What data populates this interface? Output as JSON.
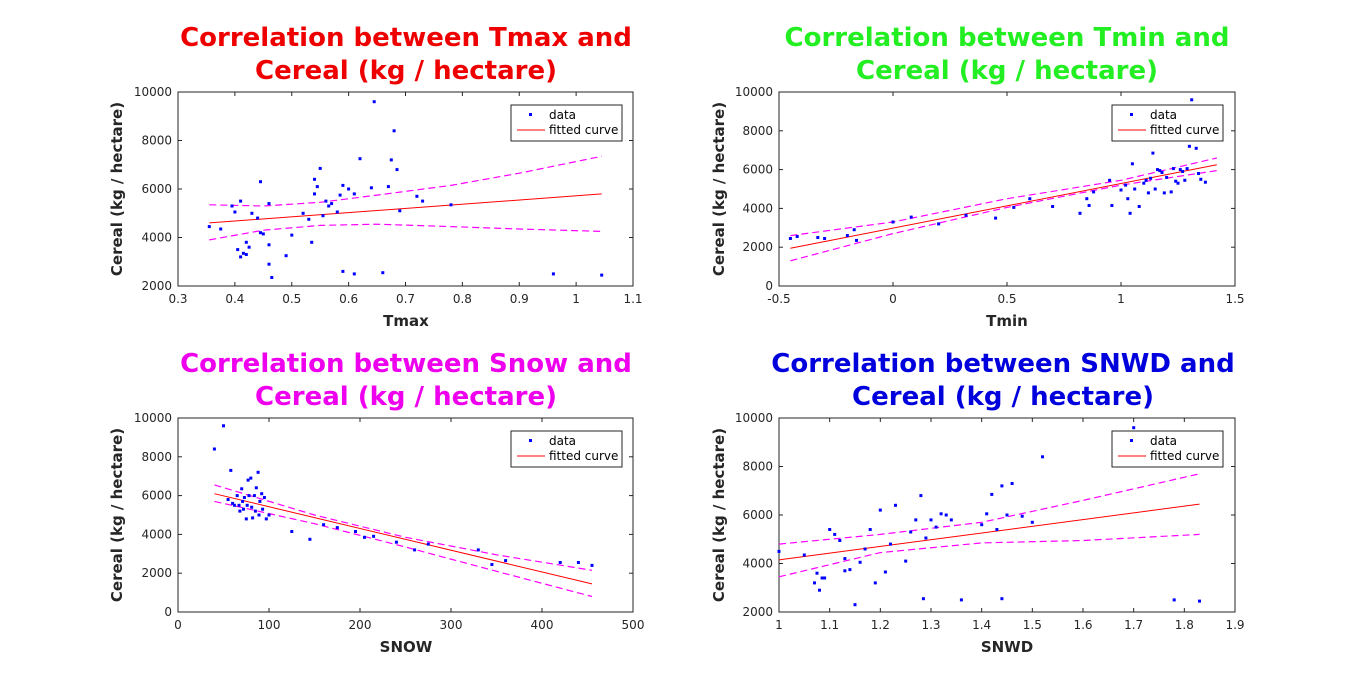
{
  "colors": {
    "points": "#0000ff",
    "fit": "#ff0000",
    "bounds": "#ff00ff",
    "axis": "#262626",
    "legend_border": "#262626"
  },
  "chart_data": [
    {
      "type": "scatter",
      "id": "tmax",
      "title_line1": "Correlation between Tmax and",
      "title_line2": "Cereal  (kg / hectare)",
      "title_color": "#ee0000",
      "xlabel": "Tmax",
      "ylabel": "Cereal  (kg / hectare)",
      "xlim": [
        0.3,
        1.1
      ],
      "ylim": [
        2000,
        10000
      ],
      "xticks": [
        0.3,
        0.4,
        0.5,
        0.6,
        0.7,
        0.8,
        0.9,
        1,
        1.1
      ],
      "yticks": [
        2000,
        4000,
        6000,
        8000,
        10000
      ],
      "xtick_labels": [
        "0.3",
        "0.4",
        "0.5",
        "0.6",
        "0.7",
        "0.8",
        "0.9",
        "1",
        "1.1"
      ],
      "ytick_labels": [
        "2000",
        "4000",
        "6000",
        "8000",
        "10000"
      ],
      "legend": [
        "data",
        "fitted curve"
      ],
      "points": [
        [
          0.355,
          4450
        ],
        [
          0.375,
          4350
        ],
        [
          0.395,
          5300
        ],
        [
          0.4,
          5050
        ],
        [
          0.405,
          3500
        ],
        [
          0.41,
          3200
        ],
        [
          0.41,
          5500
        ],
        [
          0.415,
          3350
        ],
        [
          0.42,
          3800
        ],
        [
          0.42,
          3300
        ],
        [
          0.425,
          3600
        ],
        [
          0.43,
          5000
        ],
        [
          0.44,
          4800
        ],
        [
          0.445,
          6300
        ],
        [
          0.445,
          4200
        ],
        [
          0.45,
          4150
        ],
        [
          0.46,
          3700
        ],
        [
          0.46,
          5400
        ],
        [
          0.46,
          2900
        ],
        [
          0.465,
          2350
        ],
        [
          0.49,
          3250
        ],
        [
          0.5,
          4100
        ],
        [
          0.52,
          5000
        ],
        [
          0.53,
          4750
        ],
        [
          0.535,
          3800
        ],
        [
          0.54,
          5800
        ],
        [
          0.54,
          6400
        ],
        [
          0.545,
          6100
        ],
        [
          0.55,
          6850
        ],
        [
          0.555,
          4900
        ],
        [
          0.56,
          5500
        ],
        [
          0.565,
          5300
        ],
        [
          0.57,
          5400
        ],
        [
          0.58,
          5050
        ],
        [
          0.585,
          5750
        ],
        [
          0.59,
          6150
        ],
        [
          0.59,
          2600
        ],
        [
          0.6,
          6000
        ],
        [
          0.61,
          5800
        ],
        [
          0.61,
          2500
        ],
        [
          0.62,
          7250
        ],
        [
          0.64,
          6050
        ],
        [
          0.645,
          9600
        ],
        [
          0.66,
          2550
        ],
        [
          0.67,
          6100
        ],
        [
          0.675,
          7200
        ],
        [
          0.68,
          8400
        ],
        [
          0.685,
          6800
        ],
        [
          0.69,
          5100
        ],
        [
          0.72,
          5700
        ],
        [
          0.73,
          5500
        ],
        [
          0.78,
          5350
        ],
        [
          0.96,
          2500
        ],
        [
          1.045,
          2450
        ]
      ],
      "fit": [
        [
          0.355,
          4600
        ],
        [
          1.045,
          5800
        ]
      ],
      "upper": [
        [
          0.355,
          5350
        ],
        [
          0.45,
          5300
        ],
        [
          0.55,
          5450
        ],
        [
          0.65,
          5750
        ],
        [
          0.78,
          6150
        ],
        [
          0.9,
          6650
        ],
        [
          1.045,
          7350
        ]
      ],
      "lower": [
        [
          0.355,
          3900
        ],
        [
          0.45,
          4300
        ],
        [
          0.55,
          4500
        ],
        [
          0.65,
          4550
        ],
        [
          0.78,
          4450
        ],
        [
          0.9,
          4350
        ],
        [
          1.045,
          4250
        ]
      ]
    },
    {
      "type": "scatter",
      "id": "tmin",
      "title_line1": "Correlation between Tmin and",
      "title_line2": "Cereal  (kg / hectare)",
      "title_color": "#22ee22",
      "xlabel": "Tmin",
      "ylabel": "Cereal  (kg / hectare)",
      "xlim": [
        -0.5,
        1.5
      ],
      "ylim": [
        0,
        10000
      ],
      "xticks": [
        -0.5,
        0,
        0.5,
        1,
        1.5
      ],
      "yticks": [
        0,
        2000,
        4000,
        6000,
        8000,
        10000
      ],
      "xtick_labels": [
        "-0.5",
        "0",
        "0.5",
        "1",
        "1.5"
      ],
      "ytick_labels": [
        "0",
        "2000",
        "4000",
        "6000",
        "8000",
        "10000"
      ],
      "legend": [
        "data",
        "fitted curve"
      ],
      "points": [
        [
          -0.45,
          2450
        ],
        [
          -0.42,
          2550
        ],
        [
          -0.33,
          2500
        ],
        [
          -0.3,
          2450
        ],
        [
          -0.2,
          2600
        ],
        [
          -0.17,
          2900
        ],
        [
          -0.16,
          2350
        ],
        [
          0,
          3300
        ],
        [
          0.08,
          3550
        ],
        [
          0.2,
          3200
        ],
        [
          0.32,
          3650
        ],
        [
          0.45,
          3500
        ],
        [
          0.53,
          4050
        ],
        [
          0.6,
          4500
        ],
        [
          0.7,
          4100
        ],
        [
          0.82,
          3750
        ],
        [
          0.85,
          4500
        ],
        [
          0.86,
          4150
        ],
        [
          0.88,
          4850
        ],
        [
          0.95,
          5450
        ],
        [
          0.96,
          4150
        ],
        [
          1,
          4950
        ],
        [
          1.02,
          5200
        ],
        [
          1.03,
          4500
        ],
        [
          1.04,
          3750
        ],
        [
          1.05,
          6300
        ],
        [
          1.06,
          5000
        ],
        [
          1.08,
          4100
        ],
        [
          1.1,
          5300
        ],
        [
          1.11,
          5450
        ],
        [
          1.12,
          4800
        ],
        [
          1.13,
          5550
        ],
        [
          1.14,
          6850
        ],
        [
          1.15,
          5000
        ],
        [
          1.16,
          6000
        ],
        [
          1.17,
          5950
        ],
        [
          1.18,
          5850
        ],
        [
          1.19,
          4800
        ],
        [
          1.2,
          5600
        ],
        [
          1.22,
          4850
        ],
        [
          1.23,
          6050
        ],
        [
          1.24,
          5400
        ],
        [
          1.25,
          5300
        ],
        [
          1.26,
          6000
        ],
        [
          1.27,
          5900
        ],
        [
          1.28,
          5450
        ],
        [
          1.29,
          6050
        ],
        [
          1.3,
          7200
        ],
        [
          1.31,
          9600
        ],
        [
          1.33,
          7100
        ],
        [
          1.34,
          5800
        ],
        [
          1.35,
          5500
        ],
        [
          1.37,
          5350
        ]
      ],
      "fit": [
        [
          -0.45,
          1950
        ],
        [
          1.42,
          6250
        ]
      ],
      "upper": [
        [
          -0.45,
          2600
        ],
        [
          0,
          3300
        ],
        [
          0.5,
          4500
        ],
        [
          1,
          5450
        ],
        [
          1.42,
          6600
        ]
      ],
      "lower": [
        [
          -0.45,
          1300
        ],
        [
          0,
          2700
        ],
        [
          0.5,
          4050
        ],
        [
          1,
          5200
        ],
        [
          1.42,
          5950
        ]
      ]
    },
    {
      "type": "scatter",
      "id": "snow",
      "title_line1": "Correlation between Snow and",
      "title_line2": "Cereal  (kg / hectare)",
      "title_color": "#ee00ee",
      "xlabel": "SNOW",
      "ylabel": "Cereal  (kg / hectare)",
      "xlim": [
        0,
        500
      ],
      "ylim": [
        0,
        10000
      ],
      "xticks": [
        0,
        100,
        200,
        300,
        400,
        500
      ],
      "yticks": [
        0,
        2000,
        4000,
        6000,
        8000,
        10000
      ],
      "xtick_labels": [
        "0",
        "100",
        "200",
        "300",
        "400",
        "500"
      ],
      "ytick_labels": [
        "0",
        "2000",
        "4000",
        "6000",
        "8000",
        "10000"
      ],
      "legend": [
        "data",
        "fitted curve"
      ],
      "points": [
        [
          40,
          8400
        ],
        [
          50,
          9600
        ],
        [
          55,
          5800
        ],
        [
          58,
          7300
        ],
        [
          60,
          5600
        ],
        [
          62,
          5500
        ],
        [
          65,
          6000
        ],
        [
          67,
          5500
        ],
        [
          68,
          5200
        ],
        [
          70,
          6350
        ],
        [
          71,
          5700
        ],
        [
          72,
          5300
        ],
        [
          73,
          5900
        ],
        [
          75,
          4800
        ],
        [
          76,
          5500
        ],
        [
          77,
          6800
        ],
        [
          78,
          6000
        ],
        [
          80,
          6900
        ],
        [
          81,
          5400
        ],
        [
          82,
          4850
        ],
        [
          84,
          6000
        ],
        [
          85,
          5200
        ],
        [
          86,
          6400
        ],
        [
          88,
          7200
        ],
        [
          89,
          5000
        ],
        [
          90,
          5700
        ],
        [
          92,
          6100
        ],
        [
          93,
          5300
        ],
        [
          95,
          5900
        ],
        [
          97,
          4800
        ],
        [
          100,
          5000
        ],
        [
          125,
          4150
        ],
        [
          145,
          3750
        ],
        [
          160,
          4500
        ],
        [
          175,
          4350
        ],
        [
          195,
          4150
        ],
        [
          205,
          3850
        ],
        [
          215,
          3900
        ],
        [
          240,
          3600
        ],
        [
          260,
          3200
        ],
        [
          275,
          3500
        ],
        [
          330,
          3200
        ],
        [
          345,
          2450
        ],
        [
          360,
          2650
        ],
        [
          420,
          2550
        ],
        [
          440,
          2550
        ],
        [
          455,
          2400
        ]
      ],
      "fit": [
        [
          40,
          6100
        ],
        [
          455,
          1450
        ]
      ],
      "upper": [
        [
          40,
          6550
        ],
        [
          150,
          5000
        ],
        [
          250,
          3850
        ],
        [
          350,
          2950
        ],
        [
          455,
          2150
        ]
      ],
      "lower": [
        [
          40,
          5700
        ],
        [
          150,
          4550
        ],
        [
          250,
          3350
        ],
        [
          350,
          2100
        ],
        [
          455,
          800
        ]
      ]
    },
    {
      "type": "scatter",
      "id": "snwd",
      "title_line1": "Correlation between SNWD and",
      "title_line2": "Cereal  (kg / hectare)",
      "title_color": "#0000dd",
      "xlabel": "SNWD",
      "ylabel": "Cereal  (kg / hectare)",
      "xlim": [
        1,
        1.9
      ],
      "ylim": [
        2000,
        10000
      ],
      "xticks": [
        1,
        1.1,
        1.2,
        1.3,
        1.4,
        1.5,
        1.6,
        1.7,
        1.8,
        1.9
      ],
      "yticks": [
        2000,
        4000,
        6000,
        8000,
        10000
      ],
      "xtick_labels": [
        "1",
        "1.1",
        "1.2",
        "1.3",
        "1.4",
        "1.5",
        "1.6",
        "1.7",
        "1.8",
        "1.9"
      ],
      "ytick_labels": [
        "2000",
        "4000",
        "6000",
        "8000",
        "10000"
      ],
      "legend": [
        "data",
        "fitted curve"
      ],
      "points": [
        [
          1,
          4500
        ],
        [
          1.05,
          4350
        ],
        [
          1.07,
          3200
        ],
        [
          1.075,
          3600
        ],
        [
          1.08,
          2900
        ],
        [
          1.085,
          3400
        ],
        [
          1.09,
          3400
        ],
        [
          1.1,
          5400
        ],
        [
          1.11,
          5200
        ],
        [
          1.12,
          4950
        ],
        [
          1.13,
          3700
        ],
        [
          1.13,
          4200
        ],
        [
          1.14,
          3750
        ],
        [
          1.15,
          2300
        ],
        [
          1.16,
          4050
        ],
        [
          1.17,
          4600
        ],
        [
          1.18,
          5400
        ],
        [
          1.19,
          3200
        ],
        [
          1.2,
          6200
        ],
        [
          1.21,
          3650
        ],
        [
          1.22,
          4800
        ],
        [
          1.23,
          6400
        ],
        [
          1.25,
          4100
        ],
        [
          1.26,
          5300
        ],
        [
          1.27,
          5800
        ],
        [
          1.28,
          6800
        ],
        [
          1.285,
          2550
        ],
        [
          1.29,
          5050
        ],
        [
          1.3,
          5800
        ],
        [
          1.31,
          5500
        ],
        [
          1.32,
          6050
        ],
        [
          1.33,
          6000
        ],
        [
          1.34,
          5800
        ],
        [
          1.36,
          2500
        ],
        [
          1.4,
          5600
        ],
        [
          1.41,
          6050
        ],
        [
          1.42,
          6850
        ],
        [
          1.43,
          5400
        ],
        [
          1.44,
          7200
        ],
        [
          1.44,
          2550
        ],
        [
          1.45,
          6000
        ],
        [
          1.46,
          7300
        ],
        [
          1.48,
          5950
        ],
        [
          1.5,
          5700
        ],
        [
          1.52,
          8400
        ],
        [
          1.7,
          9600
        ],
        [
          1.78,
          2500
        ],
        [
          1.83,
          2450
        ]
      ],
      "fit": [
        [
          1,
          4150
        ],
        [
          1.83,
          6450
        ]
      ],
      "upper": [
        [
          1,
          4800
        ],
        [
          1.2,
          5200
        ],
        [
          1.4,
          5700
        ],
        [
          1.6,
          6600
        ],
        [
          1.83,
          7700
        ]
      ],
      "lower": [
        [
          1,
          3450
        ],
        [
          1.2,
          4450
        ],
        [
          1.4,
          4850
        ],
        [
          1.6,
          4950
        ],
        [
          1.83,
          5200
        ]
      ]
    }
  ]
}
